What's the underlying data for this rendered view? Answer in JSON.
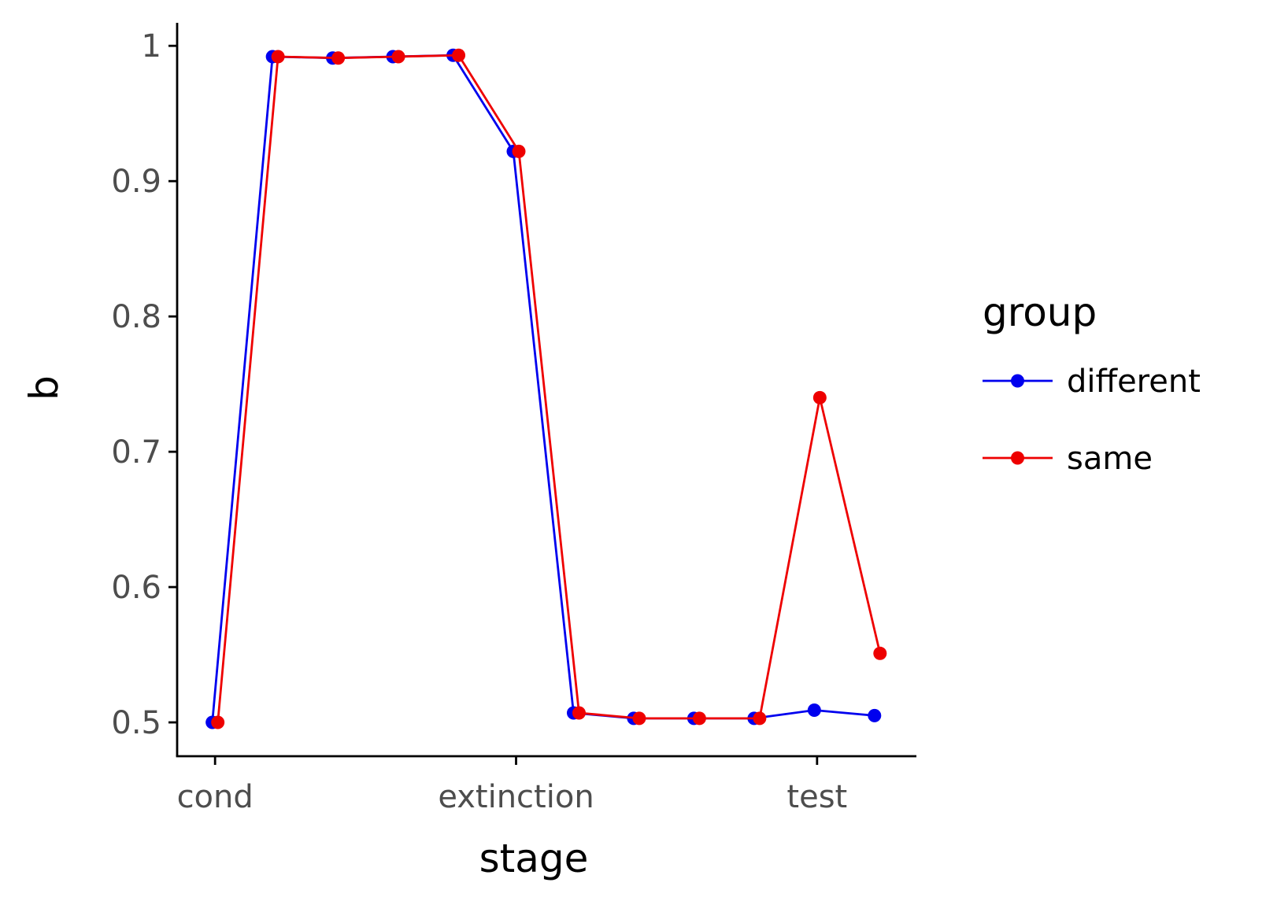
{
  "chart_data": {
    "type": "line",
    "xlabel": "stage",
    "ylabel": "b",
    "x_tick_labels": [
      "cond",
      "extinction",
      "test"
    ],
    "y_ticks": [
      0.5,
      0.6,
      0.7,
      0.8,
      0.9,
      1
    ],
    "y_tick_labels": [
      "0.5",
      "0.6",
      "0.7",
      "0.8",
      "0.9",
      "1"
    ],
    "ylim": [
      0.475,
      1.017
    ],
    "xlim": [
      -0.63,
      11.65
    ],
    "legend": {
      "title": "group",
      "position": "right"
    },
    "series": [
      {
        "name": "different",
        "color": "#0000ee",
        "x": [
          0,
          1,
          2,
          3,
          4,
          5,
          6,
          7,
          8,
          9,
          10,
          11
        ],
        "values": [
          0.5,
          0.992,
          0.991,
          0.992,
          0.993,
          0.922,
          0.507,
          0.503,
          0.503,
          0.503,
          0.509,
          0.505
        ]
      },
      {
        "name": "same",
        "color": "#ee0000",
        "x": [
          0,
          1,
          2,
          3,
          4,
          5,
          6,
          7,
          8,
          9,
          10,
          11
        ],
        "values": [
          0.5,
          0.992,
          0.991,
          0.992,
          0.993,
          0.922,
          0.507,
          0.503,
          0.503,
          0.503,
          0.74,
          0.551
        ]
      }
    ]
  }
}
